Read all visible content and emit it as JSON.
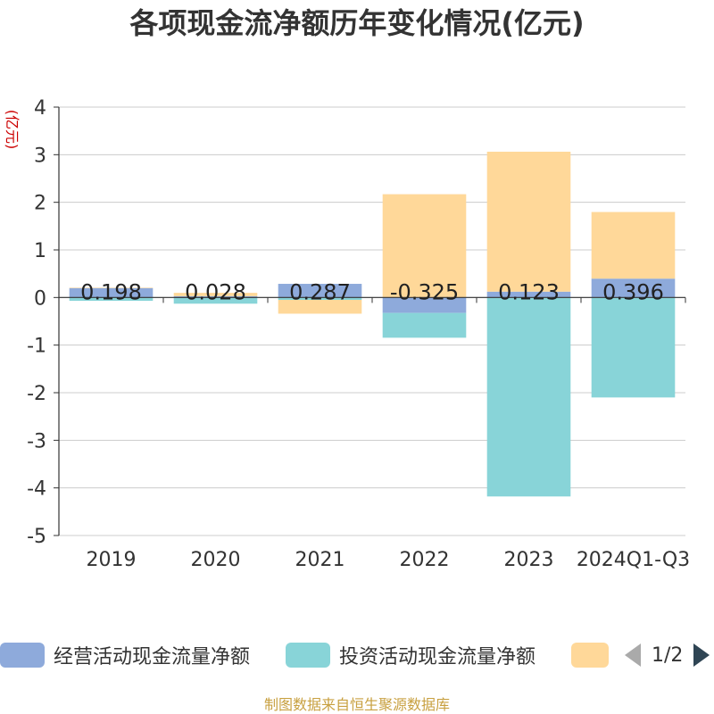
{
  "chart_data": {
    "type": "bar",
    "stacked": true,
    "title": "各项现金流净额历年变化情况(亿元)",
    "ylabel": "(亿元)",
    "ylim": [
      -5,
      4
    ],
    "yticks": [
      4,
      3,
      2,
      1,
      0,
      -1,
      -2,
      -3,
      -4,
      -5
    ],
    "categories": [
      "2019",
      "2020",
      "2021",
      "2022",
      "2023",
      "2024Q1-Q3"
    ],
    "series": [
      {
        "name": "经营活动现金流量净额",
        "color": "#8eaadb",
        "values": [
          0.198,
          0.028,
          0.287,
          -0.325,
          0.123,
          0.396
        ],
        "labels": [
          "0.198",
          "0.028",
          "0.287",
          "-0.325",
          "0.123",
          "0.396"
        ]
      },
      {
        "name": "投资活动现金流量净额",
        "color": "#88d4d8",
        "values": [
          -0.07,
          -0.13,
          -0.05,
          -0.52,
          -4.18,
          -2.1
        ]
      },
      {
        "name": "",
        "color": "#ffd899",
        "values": [
          0.01,
          0.07,
          -0.29,
          2.17,
          2.94,
          1.4
        ]
      }
    ],
    "legend": {
      "position": "bottom",
      "page": "1/2"
    },
    "grid": true
  },
  "source": "制图数据来自恒生聚源数据库"
}
